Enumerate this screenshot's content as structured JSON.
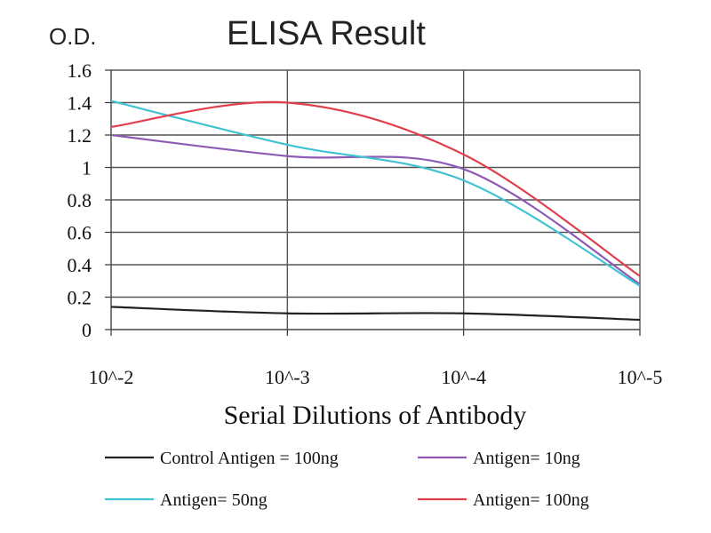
{
  "chart_data": {
    "type": "line",
    "title": "ELISA Result",
    "ylabel": "O.D.",
    "xlabel": "Serial Dilutions of Antibody",
    "categories": [
      "10^-2",
      "10^-3",
      "10^-4",
      "10^-5"
    ],
    "ylim": [
      0,
      1.6
    ],
    "yticks": [
      "0",
      "0.2",
      "0.4",
      "0.6",
      "0.8",
      "1",
      "1.2",
      "1.4",
      "1.6"
    ],
    "grid": true,
    "legend_position": "bottom",
    "series": [
      {
        "name": "Control Antigen = 100ng",
        "color": "#222222",
        "values": [
          0.14,
          0.1,
          0.1,
          0.06
        ]
      },
      {
        "name": "Antigen= 10ng",
        "color": "#8e5bb4",
        "values": [
          1.2,
          1.07,
          0.99,
          0.28
        ]
      },
      {
        "name": "Antigen= 50ng",
        "color": "#3fc2d2",
        "values": [
          1.41,
          1.14,
          0.92,
          0.27
        ]
      },
      {
        "name": "Antigen= 100ng",
        "color": "#e0404c",
        "values": [
          1.25,
          1.4,
          1.08,
          0.33
        ]
      }
    ]
  }
}
